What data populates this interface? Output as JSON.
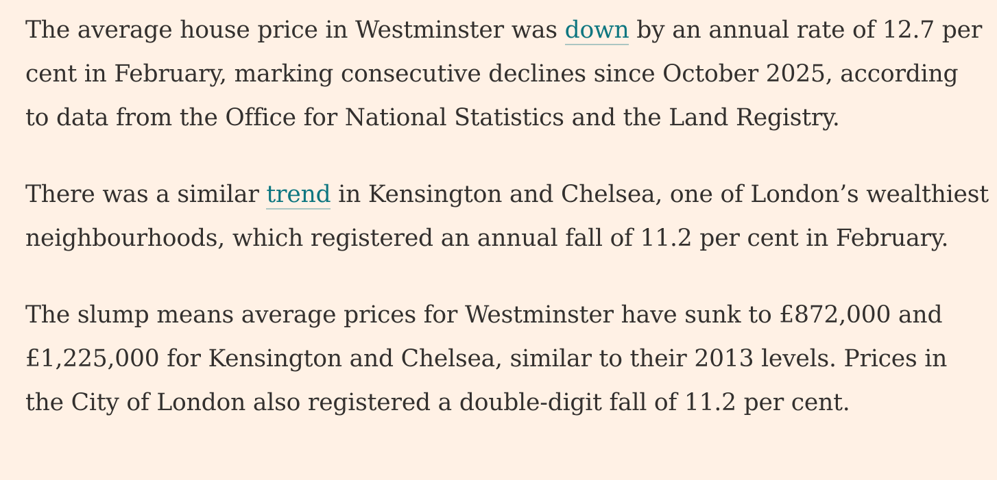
{
  "article": {
    "paragraphs": [
      {
        "before": "The average house price in Westminster was ",
        "link": "down",
        "after": " by an annual rate of 12.7 per cent in February, marking consecutive declines since October 2025, according to data from the Office for National Statistics and the Land Registry."
      },
      {
        "before": "There was a similar ",
        "link": "trend",
        "after": " in Kensington and Chelsea, one of London’s wealthiest neighbourhoods, which registered an annual fall of 11.2 per cent in February."
      },
      {
        "text": "The slump means average prices for Westminster have sunk to £872,000 and £1,225,000 for Kensington and Chelsea, similar to their 2013 levels. Prices in the City of London also registered a double-digit fall of 11.2 per cent."
      }
    ]
  },
  "colors": {
    "background": "#FFF1E5",
    "text": "#33302E",
    "link": "#0D7680"
  }
}
